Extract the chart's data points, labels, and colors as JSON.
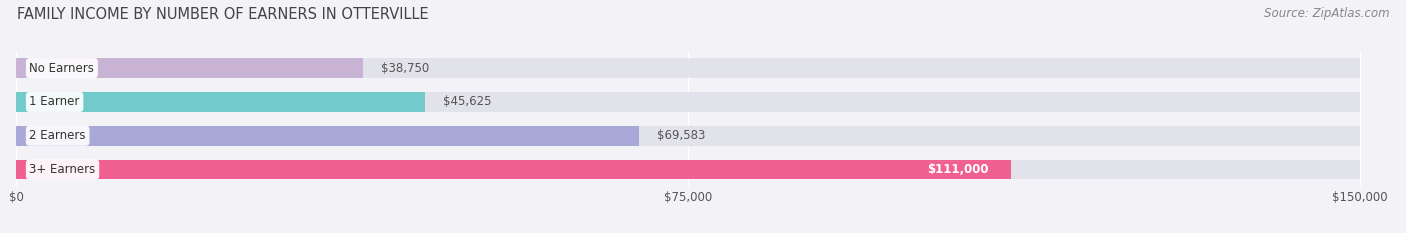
{
  "title": "FAMILY INCOME BY NUMBER OF EARNERS IN OTTERVILLE",
  "source": "Source: ZipAtlas.com",
  "categories": [
    "No Earners",
    "1 Earner",
    "2 Earners",
    "3+ Earners"
  ],
  "values": [
    38750,
    45625,
    69583,
    111000
  ],
  "bar_colors": [
    "#c9b3d5",
    "#72caca",
    "#a9a9d8",
    "#f06090"
  ],
  "label_colors": [
    "#555555",
    "#555555",
    "#555555",
    "#ffffff"
  ],
  "value_labels": [
    "$38,750",
    "$45,625",
    "$69,583",
    "$111,000"
  ],
  "xlim": [
    0,
    150000
  ],
  "xticks": [
    0,
    75000,
    150000
  ],
  "xtick_labels": [
    "$0",
    "$75,000",
    "$150,000"
  ],
  "background_color": "#f2f2f7",
  "bar_background_color": "#e2e2ea",
  "title_fontsize": 10.5,
  "source_fontsize": 8.5,
  "label_fontsize": 8.5,
  "value_fontsize": 8.5
}
